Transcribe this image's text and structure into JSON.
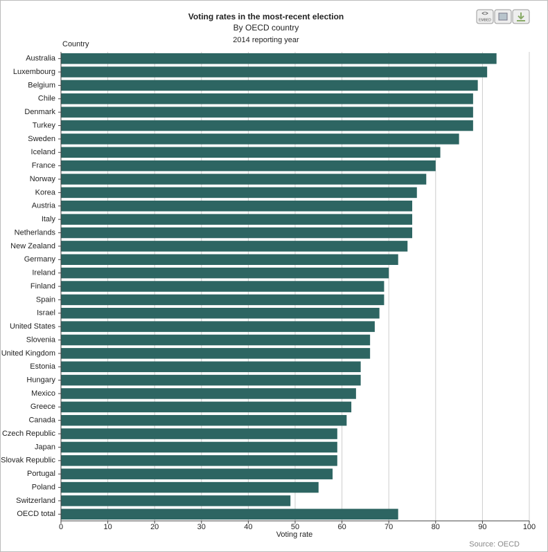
{
  "toolbar": {
    "embed": "EMBED"
  },
  "chart_data": {
    "type": "bar",
    "orientation": "horizontal",
    "title": "Voting rates in the most-recent election",
    "subtitle": "By OECD country",
    "subtitle2": "2014 reporting year",
    "y_label": "Country",
    "x_label": "Voting rate",
    "source": "Source: OECD",
    "color": "#2d6562",
    "grid": true,
    "categories": [
      "Australia",
      "Luxembourg",
      "Belgium",
      "Chile",
      "Denmark",
      "Turkey",
      "Sweden",
      "Iceland",
      "France",
      "Norway",
      "Korea",
      "Austria",
      "Italy",
      "Netherlands",
      "New Zealand",
      "Germany",
      "Ireland",
      "Finland",
      "Spain",
      "Israel",
      "United States",
      "Slovenia",
      "United Kingdom",
      "Estonia",
      "Hungary",
      "Mexico",
      "Greece",
      "Canada",
      "Czech Republic",
      "Japan",
      "Slovak Republic",
      "Portugal",
      "Poland",
      "Switzerland",
      "OECD total"
    ],
    "values": [
      93,
      91,
      89,
      88,
      88,
      88,
      85,
      81,
      80,
      78,
      76,
      75,
      75,
      75,
      74,
      72,
      70,
      69,
      69,
      68,
      67,
      66,
      66,
      64,
      64,
      63,
      62,
      61,
      59,
      59,
      59,
      58,
      55,
      49,
      72
    ],
    "xlim": [
      0,
      100
    ],
    "xticks": [
      0,
      10,
      20,
      30,
      40,
      50,
      60,
      70,
      80,
      90,
      100
    ]
  }
}
